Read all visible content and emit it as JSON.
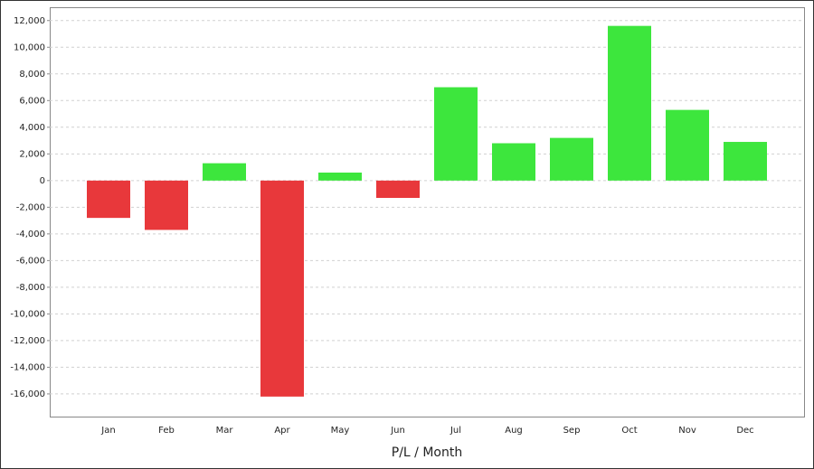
{
  "chart_data": {
    "type": "bar",
    "x_label": "P/L / Month",
    "categories": [
      "Jan",
      "Feb",
      "Mar",
      "Apr",
      "May",
      "Jun",
      "Jul",
      "Aug",
      "Sep",
      "Oct",
      "Nov",
      "Dec"
    ],
    "values": [
      -2800,
      -3700,
      1300,
      -16200,
      600,
      -1300,
      7000,
      2800,
      3200,
      11600,
      5300,
      2900
    ],
    "positive_color": "#3de63d",
    "negative_color": "#e8383b",
    "ylim": [
      -17700,
      13000
    ],
    "yticks": [
      {
        "value": -16000,
        "label": "-16,000"
      },
      {
        "value": -14000,
        "label": "-14,000"
      },
      {
        "value": -12000,
        "label": "-12,000"
      },
      {
        "value": -10000,
        "label": "-10,000"
      },
      {
        "value": -8000,
        "label": "-8,000"
      },
      {
        "value": -6000,
        "label": "-6,000"
      },
      {
        "value": -4000,
        "label": "-4,000"
      },
      {
        "value": -2000,
        "label": "-2,000"
      },
      0,
      {
        "value": 2000,
        "label": "2,000"
      },
      {
        "value": 4000,
        "label": "4,000"
      },
      {
        "value": 6000,
        "label": "6,000"
      },
      {
        "value": 8000,
        "label": "8,000"
      },
      {
        "value": 10000,
        "label": "10,000"
      },
      {
        "value": 12000,
        "label": "12,000"
      }
    ],
    "grid": true
  }
}
